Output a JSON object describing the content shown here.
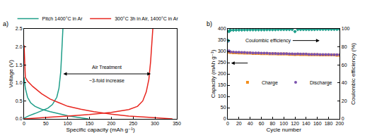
{
  "chart_data": [
    {
      "type": "line",
      "title": "a)",
      "x_label": "Specific capacity (mAh g⁻¹)",
      "y_label": "Voltage (V)",
      "xlim": [
        0,
        350
      ],
      "xticks": [
        0,
        50,
        100,
        150,
        200,
        250,
        300,
        350
      ],
      "ylim": [
        0,
        2.5
      ],
      "yticks": [
        {
          "value": 0,
          "label": "0.0"
        },
        0.5,
        {
          "value": 1,
          "label": "1.0"
        },
        1.5,
        {
          "value": 2,
          "label": "2.0"
        },
        2.5
      ],
      "legend": "top",
      "annotations": [
        "Air Treatment",
        "~3-fold increase"
      ],
      "series": [
        {
          "name": "Pitch 1400°C in Ar",
          "color": "#1f9e89",
          "x": [
            0,
            3,
            8,
            15,
            25,
            40,
            60,
            80,
            100,
            120,
            140,
            147,
            null,
            0,
            10,
            25,
            40,
            55,
            65,
            75,
            80,
            84,
            87,
            89
          ],
          "values": [
            1.15,
            0.85,
            0.6,
            0.45,
            0.35,
            0.27,
            0.2,
            0.14,
            0.09,
            0.05,
            0.02,
            0.0,
            null,
            0.02,
            0.08,
            0.15,
            0.22,
            0.3,
            0.4,
            0.6,
            0.85,
            1.3,
            2.0,
            2.5
          ]
        },
        {
          "name": "300°C 3h in Air, 1400°C in Ar",
          "color": "#e8261f",
          "x": [
            0,
            1,
            3,
            8,
            20,
            40,
            60,
            80,
            100,
            130,
            160,
            200,
            240,
            280,
            310,
            330,
            340,
            null,
            0,
            20,
            60,
            100,
            150,
            200,
            240,
            260,
            272,
            280,
            286,
            290,
            293,
            295
          ],
          "values": [
            2.05,
            1.6,
            1.15,
            1.05,
            0.9,
            0.7,
            0.55,
            0.45,
            0.35,
            0.27,
            0.2,
            0.13,
            0.08,
            0.05,
            0.03,
            0.01,
            0.0,
            null,
            0.0,
            0.02,
            0.05,
            0.08,
            0.12,
            0.18,
            0.26,
            0.35,
            0.5,
            0.75,
            1.1,
            1.6,
            2.1,
            2.5
          ]
        }
      ]
    },
    {
      "type": "scatter",
      "title": "b)",
      "x_label": "Cycle number",
      "y_label": "Capacity (mAh g⁻¹)",
      "y2_label": "Coulombic efficiency (%)",
      "xlim": [
        0,
        200
      ],
      "xticks": [
        0,
        20,
        40,
        60,
        80,
        100,
        120,
        140,
        160,
        180,
        200
      ],
      "ylim": [
        0,
        400
      ],
      "yticks": [
        0,
        50,
        100,
        150,
        200,
        250,
        300,
        350,
        400
      ],
      "y2lim": [
        0,
        100
      ],
      "y2ticks": [
        0,
        20,
        40,
        60,
        80,
        100
      ],
      "legend": "left",
      "x": [
        1,
        2,
        3,
        5,
        10,
        15,
        20,
        25,
        30,
        35,
        40,
        45,
        50,
        55,
        60,
        65,
        70,
        75,
        80,
        85,
        90,
        95,
        100,
        105,
        110,
        115,
        120,
        125,
        130,
        135,
        140,
        145,
        150,
        155,
        160,
        165,
        170,
        175,
        180,
        185,
        190,
        195,
        200
      ],
      "series": [
        {
          "name": "Charge",
          "color": "#f28e1c",
          "marker": "square",
          "values": [
            300,
            297,
            296,
            295,
            294,
            294,
            293,
            293,
            292,
            292,
            292,
            291,
            291,
            291,
            290,
            290,
            290,
            289,
            289,
            289,
            288,
            288,
            288,
            288,
            287,
            287,
            286,
            287,
            286,
            286,
            286,
            285,
            285,
            285,
            285,
            284,
            284,
            284,
            284,
            284,
            284,
            283,
            283
          ]
        },
        {
          "name": "Discharge",
          "color": "#7b52ae",
          "marker": "circle",
          "values": [
            345,
            302,
            300,
            298,
            297,
            296,
            296,
            295,
            295,
            294,
            294,
            293,
            293,
            293,
            292,
            292,
            292,
            291,
            291,
            291,
            290,
            290,
            290,
            290,
            289,
            289,
            288,
            289,
            288,
            288,
            288,
            287,
            287,
            287,
            287,
            286,
            286,
            286,
            286,
            285,
            285,
            285,
            285
          ]
        },
        {
          "name": "Coulombic efficiency",
          "color": "#1b9e8a",
          "marker": "diamond",
          "axis": "y2",
          "values": [
            87,
            97,
            98,
            98.5,
            98.6,
            98.7,
            98.8,
            98.8,
            98.9,
            98.9,
            99,
            99,
            99,
            99,
            99,
            99,
            99.1,
            99.1,
            99.1,
            99.1,
            99.2,
            99.2,
            99.2,
            99.2,
            99.2,
            99.2,
            97,
            99.2,
            99.3,
            99.3,
            99.3,
            99.3,
            99.3,
            99.3,
            99.4,
            99.4,
            99.4,
            99.4,
            99.4,
            99.4,
            99.4,
            99.4,
            99.4
          ]
        }
      ]
    }
  ]
}
